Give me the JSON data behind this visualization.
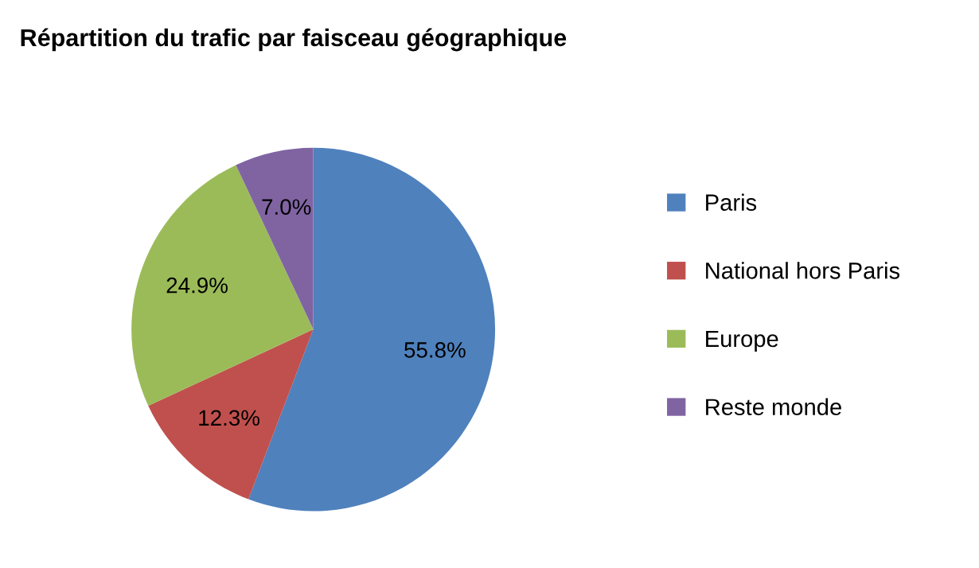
{
  "chart_data": {
    "type": "pie",
    "title": "Répartition du trafic par faisceau géographique",
    "categories": [
      "Paris",
      "National hors Paris",
      "Europe",
      "Reste monde"
    ],
    "values": [
      55.8,
      12.3,
      24.9,
      7.0
    ],
    "colors": [
      "#4f81bd",
      "#c0504d",
      "#9bbb59",
      "#8064a2"
    ],
    "value_labels": [
      "55.8%",
      "12.3%",
      "24.9%",
      "7.0%"
    ],
    "legend": "right"
  }
}
